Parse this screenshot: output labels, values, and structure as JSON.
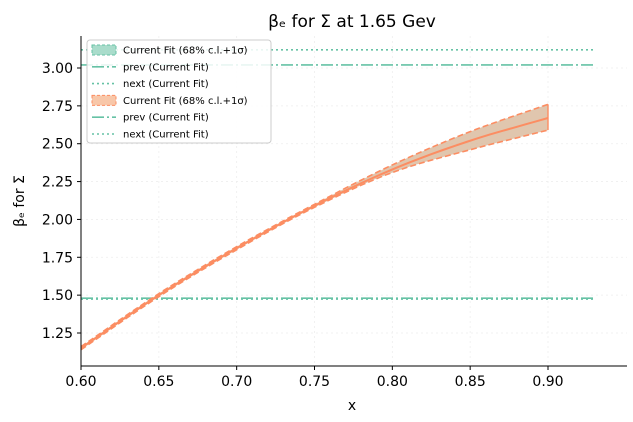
{
  "chart_data": {
    "type": "line",
    "title": "βₑ for Σ at 1.65 Gev",
    "xlabel": "x",
    "ylabel": "βₑ for Σ",
    "xlim": [
      0.6,
      0.95
    ],
    "ylim": [
      1.03,
      3.22
    ],
    "x_ticks": [
      "0.60",
      "0.65",
      "0.70",
      "0.75",
      "0.80",
      "0.85",
      "0.90"
    ],
    "y_ticks": [
      "1.25",
      "1.50",
      "1.75",
      "2.00",
      "2.25",
      "2.50",
      "2.75",
      "3.00"
    ],
    "grid": true,
    "legend_position": "top-left",
    "legend": [
      {
        "label": "Current Fit (68% c.l.+1σ)",
        "kind": "band",
        "color": "#66c2a5"
      },
      {
        "label": "prev (Current Fit)",
        "kind": "dashdot",
        "color": "#66c2a5"
      },
      {
        "label": "next (Current Fit)",
        "kind": "dotted",
        "color": "#66c2a5"
      },
      {
        "label": "Current Fit (68% c.l.+1σ)",
        "kind": "band",
        "color": "#fc8d62"
      },
      {
        "label": "prev (Current Fit)",
        "kind": "dashdot",
        "color": "#66c2a5"
      },
      {
        "label": "next (Current Fit)",
        "kind": "dotted",
        "color": "#66c2a5"
      }
    ],
    "hlines": [
      {
        "y": 1.48,
        "x_range": [
          0.6,
          0.93
        ],
        "style": "dashdot",
        "color": "#66c2a5"
      },
      {
        "y": 1.474,
        "x_range": [
          0.6,
          0.93
        ],
        "style": "dotted",
        "color": "#66c2a5"
      },
      {
        "y": 3.02,
        "x_range": [
          0.6,
          0.93
        ],
        "style": "dashdot",
        "color": "#66c2a5"
      },
      {
        "y": 3.12,
        "x_range": [
          0.6,
          0.93
        ],
        "style": "dotted",
        "color": "#66c2a5"
      }
    ],
    "series": [
      {
        "name": "Current Fit (68% c.l.+1σ)",
        "color": "#fc8d62",
        "x": [
          0.6,
          0.65,
          0.7,
          0.75,
          0.8,
          0.85,
          0.9
        ],
        "y": [
          1.15,
          1.5,
          1.81,
          2.09,
          2.33,
          2.52,
          2.67
        ],
        "y_upper": [
          1.16,
          1.51,
          1.82,
          2.1,
          2.36,
          2.58,
          2.76
        ],
        "y_lower": [
          1.14,
          1.49,
          1.8,
          2.08,
          2.31,
          2.46,
          2.59
        ]
      }
    ]
  }
}
